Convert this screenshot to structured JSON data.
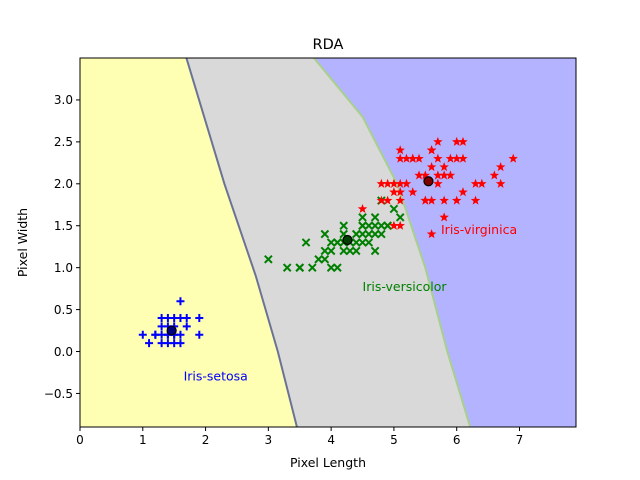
{
  "chart_data": {
    "type": "scatter",
    "title": "RDA",
    "xlabel": "Pixel Length",
    "ylabel": "Pixel Width",
    "xlim": [
      0,
      7.9
    ],
    "ylim": [
      -0.9,
      3.5
    ],
    "xticks": [
      "0",
      "1",
      "2",
      "3",
      "4",
      "5",
      "6",
      "7"
    ],
    "yticks": [
      "−0.5",
      "0.0",
      "0.5",
      "1.0",
      "1.5",
      "2.0",
      "2.5",
      "3.0"
    ],
    "grid": false,
    "regions": [
      {
        "name": "Iris-setosa",
        "color": "#ffffb3"
      },
      {
        "name": "Iris-versicolor",
        "color": "#d9d9d9"
      },
      {
        "name": "Iris-virginica",
        "color": "#b3b3ff"
      }
    ],
    "boundaries": [
      {
        "color": "#6b7394",
        "points": [
          [
            1.7,
            3.5
          ],
          [
            2.3,
            2.0
          ],
          [
            2.8,
            0.9
          ],
          [
            3.15,
            0.0
          ],
          [
            3.46,
            -0.9
          ]
        ]
      },
      {
        "color": "#a8d08d",
        "points": [
          [
            3.7,
            3.5
          ],
          [
            4.5,
            2.8
          ],
          [
            5.05,
            2.0
          ],
          [
            5.5,
            1.0
          ],
          [
            5.85,
            0.0
          ],
          [
            6.22,
            -0.9
          ]
        ]
      }
    ],
    "series": [
      {
        "name": "Iris-setosa",
        "marker": "plus",
        "color": "#0000ff",
        "label_position": [
          1.65,
          -0.3
        ],
        "centroid": [
          1.46,
          0.25
        ],
        "points": [
          [
            1.4,
            0.2
          ],
          [
            1.3,
            0.2
          ],
          [
            1.5,
            0.2
          ],
          [
            1.7,
            0.4
          ],
          [
            1.4,
            0.3
          ],
          [
            1.5,
            0.1
          ],
          [
            1.6,
            0.2
          ],
          [
            1.1,
            0.1
          ],
          [
            1.2,
            0.2
          ],
          [
            1.3,
            0.4
          ],
          [
            1.7,
            0.3
          ],
          [
            1.5,
            0.3
          ],
          [
            1.0,
            0.2
          ],
          [
            1.9,
            0.4
          ],
          [
            1.6,
            0.6
          ],
          [
            1.9,
            0.2
          ],
          [
            1.6,
            0.4
          ],
          [
            1.4,
            0.1
          ],
          [
            1.3,
            0.3
          ],
          [
            1.5,
            0.4
          ],
          [
            1.6,
            0.1
          ],
          [
            1.4,
            0.4
          ],
          [
            1.3,
            0.1
          ],
          [
            1.2,
            0.2
          ],
          [
            1.5,
            0.2
          ],
          [
            1.4,
            0.2
          ]
        ]
      },
      {
        "name": "Iris-versicolor",
        "marker": "x",
        "color": "#008000",
        "label_position": [
          4.5,
          0.77
        ],
        "centroid": [
          4.26,
          1.33
        ],
        "points": [
          [
            4.7,
            1.4
          ],
          [
            4.5,
            1.5
          ],
          [
            4.9,
            1.5
          ],
          [
            4.0,
            1.3
          ],
          [
            4.6,
            1.5
          ],
          [
            3.3,
            1.0
          ],
          [
            4.4,
            1.3
          ],
          [
            3.9,
            1.4
          ],
          [
            3.5,
            1.0
          ],
          [
            4.2,
            1.5
          ],
          [
            4.1,
            1.0
          ],
          [
            3.6,
            1.3
          ],
          [
            4.4,
            1.4
          ],
          [
            4.5,
            1.5
          ],
          [
            4.1,
            1.3
          ],
          [
            4.5,
            1.3
          ],
          [
            3.9,
            1.1
          ],
          [
            4.8,
            1.8
          ],
          [
            4.3,
            1.3
          ],
          [
            5.0,
            1.7
          ],
          [
            3.8,
            1.1
          ],
          [
            3.7,
            1.0
          ],
          [
            5.1,
            1.6
          ],
          [
            4.6,
            1.4
          ],
          [
            4.7,
            1.2
          ],
          [
            4.4,
            1.2
          ],
          [
            4.0,
            1.0
          ],
          [
            3.0,
            1.1
          ],
          [
            4.2,
            1.2
          ],
          [
            4.2,
            1.3
          ],
          [
            4.1,
            1.3
          ],
          [
            3.5,
            1.0
          ],
          [
            4.9,
            1.5
          ],
          [
            4.7,
            1.6
          ],
          [
            4.8,
            1.4
          ],
          [
            4.5,
            1.6
          ],
          [
            4.0,
            1.2
          ],
          [
            4.6,
            1.3
          ],
          [
            3.9,
            1.2
          ],
          [
            4.7,
            1.5
          ],
          [
            4.5,
            1.4
          ],
          [
            4.3,
            1.2
          ],
          [
            4.2,
            1.4
          ],
          [
            4.8,
            1.5
          ]
        ]
      },
      {
        "name": "Iris-virginica",
        "marker": "star",
        "color": "#ff0000",
        "label_position": [
          5.75,
          1.45
        ],
        "centroid": [
          5.55,
          2.03
        ],
        "points": [
          [
            6.0,
            2.5
          ],
          [
            5.1,
            1.9
          ],
          [
            5.9,
            2.1
          ],
          [
            5.6,
            1.8
          ],
          [
            5.8,
            2.2
          ],
          [
            6.6,
            2.1
          ],
          [
            4.5,
            1.7
          ],
          [
            6.3,
            1.8
          ],
          [
            5.8,
            1.8
          ],
          [
            6.1,
            2.5
          ],
          [
            5.1,
            2.0
          ],
          [
            5.3,
            1.9
          ],
          [
            5.5,
            2.1
          ],
          [
            5.0,
            2.0
          ],
          [
            5.1,
            2.4
          ],
          [
            5.3,
            2.3
          ],
          [
            5.5,
            1.8
          ],
          [
            6.7,
            2.2
          ],
          [
            6.9,
            2.3
          ],
          [
            5.0,
            1.5
          ],
          [
            5.7,
            2.3
          ],
          [
            4.9,
            2.0
          ],
          [
            6.7,
            2.0
          ],
          [
            4.9,
            1.8
          ],
          [
            5.7,
            2.1
          ],
          [
            6.0,
            1.8
          ],
          [
            4.8,
            1.8
          ],
          [
            5.8,
            1.6
          ],
          [
            6.1,
            1.9
          ],
          [
            6.4,
            2.0
          ],
          [
            5.6,
            2.2
          ],
          [
            5.1,
            1.5
          ],
          [
            5.6,
            1.4
          ],
          [
            6.1,
            2.3
          ],
          [
            5.6,
            2.4
          ],
          [
            5.5,
            1.8
          ],
          [
            5.4,
            2.1
          ],
          [
            5.6,
            2.4
          ],
          [
            5.1,
            2.3
          ],
          [
            5.9,
            2.3
          ],
          [
            5.7,
            2.5
          ],
          [
            5.2,
            2.3
          ],
          [
            5.0,
            1.9
          ],
          [
            5.2,
            2.0
          ],
          [
            5.4,
            2.3
          ],
          [
            5.1,
            1.8
          ],
          [
            6.3,
            2.0
          ],
          [
            5.8,
            2.1
          ],
          [
            5.3,
            2.3
          ],
          [
            4.8,
            2.0
          ],
          [
            5.7,
            2.0
          ],
          [
            6.0,
            2.3
          ]
        ]
      }
    ]
  }
}
